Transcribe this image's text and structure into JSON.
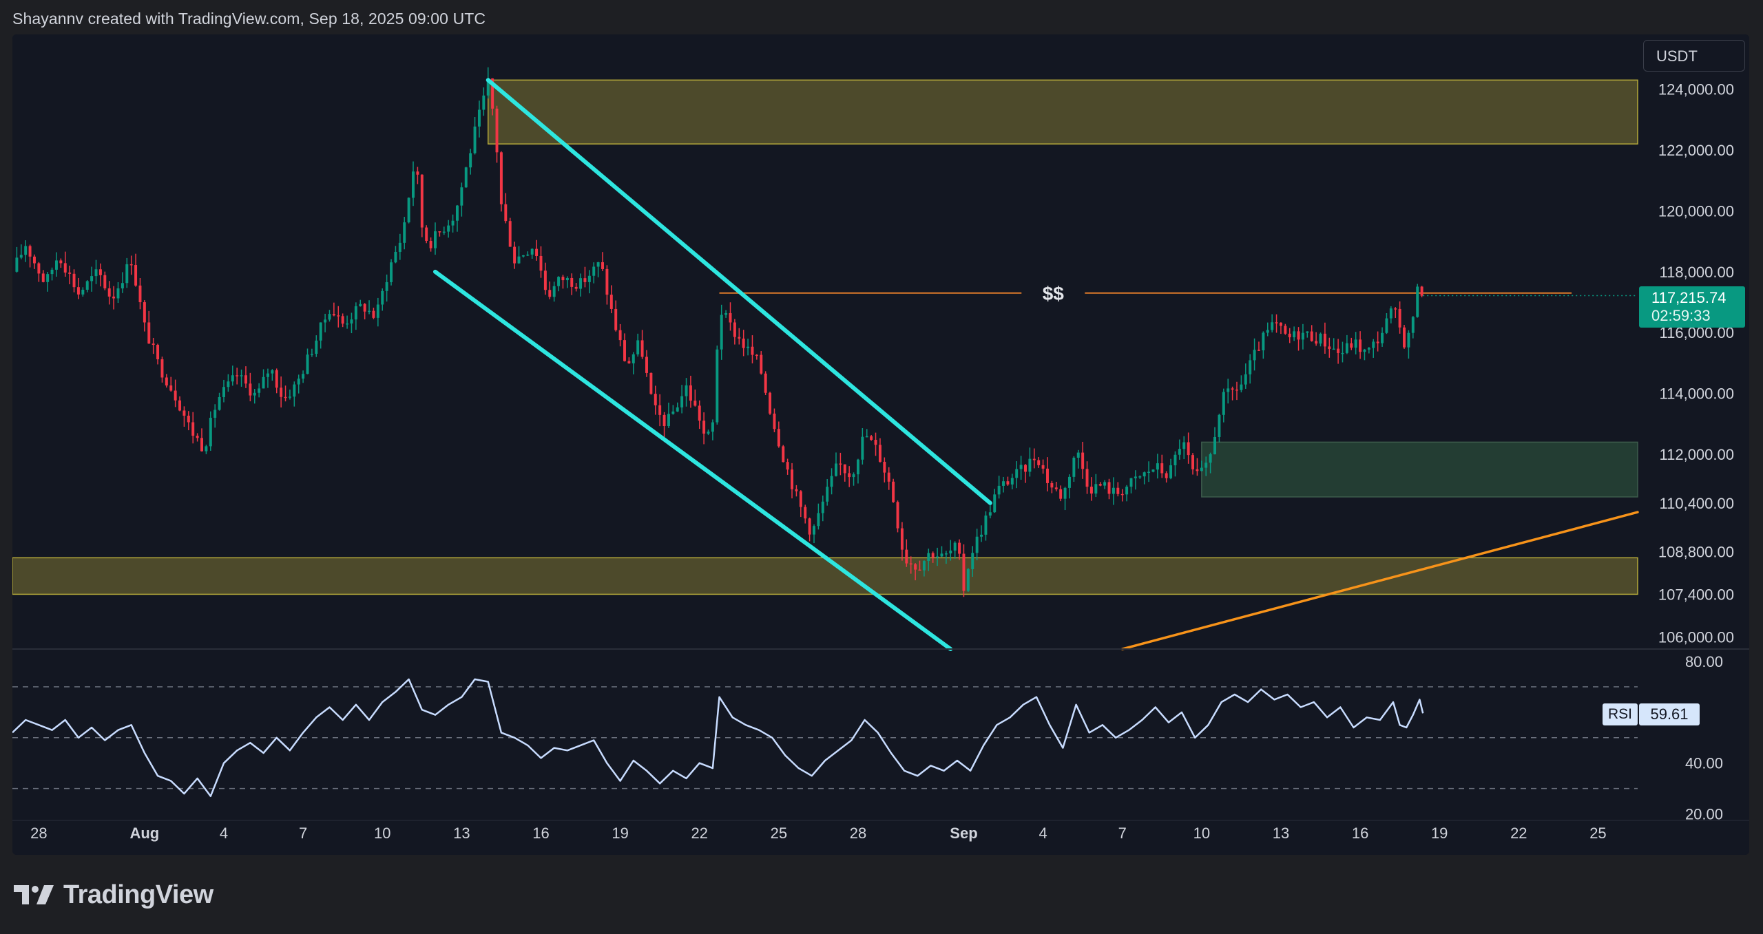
{
  "header": {
    "attribution": "Shayannv created with TradingView.com, Sep 18, 2025 09:00 UTC"
  },
  "brand": {
    "name": "TradingView"
  },
  "badge": {
    "currency": "USDT"
  },
  "price_tag": {
    "price": "117,215.74",
    "countdown": "02:59:33"
  },
  "rsi_panel": {
    "label": "RSI",
    "value": "59.61"
  },
  "colors": {
    "background": "#131722",
    "up_candle": "#089981",
    "down_candle": "#f23645",
    "channel": "#2ee6e0",
    "trendline": "#f7931a",
    "level_line": "#e07b2a",
    "supply_zone": "#4d4a2b",
    "demand_zone": "#233d33",
    "rsi_line": "#c8dcff",
    "text": "#d1d4dc"
  },
  "chart_data": {
    "type": "candlestick",
    "price_axis": {
      "ticks": [
        124000,
        122000,
        120000,
        118000,
        116000,
        114000,
        112000,
        110400,
        108800,
        107400,
        106000
      ],
      "tick_labels": [
        "124,000.00",
        "122,000.00",
        "120,000.00",
        "118,000.00",
        "116,000.00",
        "114,000.00",
        "112,000.00",
        "110,400.00",
        "108,800.00",
        "107,400.00",
        "106,000.00"
      ],
      "range": [
        105600,
        125800
      ]
    },
    "time_axis": {
      "labels": [
        "28",
        "Aug",
        "4",
        "7",
        "10",
        "13",
        "16",
        "19",
        "22",
        "25",
        "28",
        "Sep",
        "4",
        "7",
        "10",
        "13",
        "16",
        "19",
        "22",
        "25"
      ],
      "label_dates": [
        "2025-07-28",
        "2025-08-01",
        "2025-08-04",
        "2025-08-07",
        "2025-08-10",
        "2025-08-13",
        "2025-08-16",
        "2025-08-19",
        "2025-08-22",
        "2025-08-25",
        "2025-08-28",
        "2025-09-01",
        "2025-09-04",
        "2025-09-07",
        "2025-09-10",
        "2025-09-13",
        "2025-09-16",
        "2025-09-19",
        "2025-09-22",
        "2025-09-25"
      ],
      "range": [
        "2025-07-27T00:00",
        "2025-09-26T12:00"
      ]
    },
    "price_path": [
      [
        "2025-07-27T00:00",
        118000
      ],
      [
        "2025-07-27T12:00",
        118900
      ],
      [
        "2025-07-28T06:00",
        117600
      ],
      [
        "2025-07-28T18:00",
        118600
      ],
      [
        "2025-07-29T12:00",
        117300
      ],
      [
        "2025-07-30T06:00",
        118000
      ],
      [
        "2025-07-30T18:00",
        117100
      ],
      [
        "2025-07-31T12:00",
        118400
      ],
      [
        "2025-08-01T00:00",
        116200
      ],
      [
        "2025-08-01T12:00",
        115000
      ],
      [
        "2025-08-02T06:00",
        113800
      ],
      [
        "2025-08-02T18:00",
        112800
      ],
      [
        "2025-08-03T06:00",
        112200
      ],
      [
        "2025-08-03T18:00",
        113800
      ],
      [
        "2025-08-04T12:00",
        114600
      ],
      [
        "2025-08-05T06:00",
        113900
      ],
      [
        "2025-08-05T18:00",
        114900
      ],
      [
        "2025-08-06T06:00",
        113800
      ],
      [
        "2025-08-06T18:00",
        114300
      ],
      [
        "2025-08-07T12:00",
        115800
      ],
      [
        "2025-08-08T00:00",
        116800
      ],
      [
        "2025-08-08T12:00",
        116300
      ],
      [
        "2025-08-09T06:00",
        116900
      ],
      [
        "2025-08-09T18:00",
        116500
      ],
      [
        "2025-08-10T06:00",
        118100
      ],
      [
        "2025-08-10T18:00",
        119200
      ],
      [
        "2025-08-11T06:00",
        121800
      ],
      [
        "2025-08-11T12:00",
        119500
      ],
      [
        "2025-08-11T18:00",
        118900
      ],
      [
        "2025-08-12T06:00",
        119400
      ],
      [
        "2025-08-12T18:00",
        119900
      ],
      [
        "2025-08-13T12:00",
        122600
      ],
      [
        "2025-08-14T00:00",
        124200
      ],
      [
        "2025-08-14T06:00",
        122900
      ],
      [
        "2025-08-14T12:00",
        120200
      ],
      [
        "2025-08-15T00:00",
        118400
      ],
      [
        "2025-08-15T18:00",
        118900
      ],
      [
        "2025-08-16T06:00",
        117200
      ],
      [
        "2025-08-16T18:00",
        117800
      ],
      [
        "2025-08-17T12:00",
        117600
      ],
      [
        "2025-08-18T06:00",
        118300
      ],
      [
        "2025-08-18T18:00",
        116400
      ],
      [
        "2025-08-19T06:00",
        114900
      ],
      [
        "2025-08-19T18:00",
        115700
      ],
      [
        "2025-08-20T06:00",
        113500
      ],
      [
        "2025-08-20T18:00",
        113000
      ],
      [
        "2025-08-21T12:00",
        114200
      ],
      [
        "2025-08-22T00:00",
        113200
      ],
      [
        "2025-08-22T06:00",
        112400
      ],
      [
        "2025-08-22T12:00",
        113000
      ],
      [
        "2025-08-22T18:00",
        116800
      ],
      [
        "2025-08-23T06:00",
        116100
      ],
      [
        "2025-08-23T18:00",
        115500
      ],
      [
        "2025-08-24T06:00",
        115000
      ],
      [
        "2025-08-24T18:00",
        113200
      ],
      [
        "2025-08-25T06:00",
        111700
      ],
      [
        "2025-08-25T18:00",
        110400
      ],
      [
        "2025-08-26T06:00",
        109400
      ],
      [
        "2025-08-26T18:00",
        110600
      ],
      [
        "2025-08-27T06:00",
        111700
      ],
      [
        "2025-08-27T18:00",
        111300
      ],
      [
        "2025-08-28T06:00",
        112700
      ],
      [
        "2025-08-28T18:00",
        112100
      ],
      [
        "2025-08-29T06:00",
        110900
      ],
      [
        "2025-08-29T18:00",
        108600
      ],
      [
        "2025-08-30T06:00",
        108300
      ],
      [
        "2025-08-30T18:00",
        108800
      ],
      [
        "2025-08-31T06:00",
        108600
      ],
      [
        "2025-08-31T18:00",
        109000
      ],
      [
        "2025-09-01T00:00",
        107600
      ],
      [
        "2025-09-01T06:00",
        108700
      ],
      [
        "2025-09-01T18:00",
        109700
      ],
      [
        "2025-09-02T06:00",
        110800
      ],
      [
        "2025-09-02T18:00",
        111200
      ],
      [
        "2025-09-03T06:00",
        111500
      ],
      [
        "2025-09-03T18:00",
        112000
      ],
      [
        "2025-09-04T06:00",
        111000
      ],
      [
        "2025-09-04T18:00",
        110600
      ],
      [
        "2025-09-05T06:00",
        112200
      ],
      [
        "2025-09-05T18:00",
        110900
      ],
      [
        "2025-09-06T06:00",
        111000
      ],
      [
        "2025-09-06T18:00",
        110700
      ],
      [
        "2025-09-07T06:00",
        111000
      ],
      [
        "2025-09-07T18:00",
        111300
      ],
      [
        "2025-09-08T06:00",
        111600
      ],
      [
        "2025-09-08T18:00",
        111300
      ],
      [
        "2025-09-09T06:00",
        112500
      ],
      [
        "2025-09-09T18:00",
        111200
      ],
      [
        "2025-09-10T06:00",
        111600
      ],
      [
        "2025-09-10T18:00",
        113800
      ],
      [
        "2025-09-11T12:00",
        114300
      ],
      [
        "2025-09-12T06:00",
        115700
      ],
      [
        "2025-09-12T18:00",
        116300
      ],
      [
        "2025-09-13T06:00",
        115800
      ],
      [
        "2025-09-13T18:00",
        116000
      ],
      [
        "2025-09-14T12:00",
        115800
      ],
      [
        "2025-09-15T06:00",
        115300
      ],
      [
        "2025-09-15T18:00",
        115700
      ],
      [
        "2025-09-16T06:00",
        115300
      ],
      [
        "2025-09-16T18:00",
        115900
      ],
      [
        "2025-09-17T06:00",
        116800
      ],
      [
        "2025-09-17T18:00",
        115500
      ],
      [
        "2025-09-18T00:00",
        116600
      ],
      [
        "2025-09-18T06:00",
        117700
      ],
      [
        "2025-09-18T09:00",
        117215
      ]
    ],
    "overlays": {
      "supply_zone": {
        "from": "2025-08-14T00:00",
        "to": "2025-09-26T12:00",
        "price_low": 122200,
        "price_high": 124300
      },
      "demand_zone": {
        "from": "2025-09-10T00:00",
        "to": "2025-09-26T12:00",
        "price_low": 110600,
        "price_high": 112400
      },
      "support_zone": {
        "from": "2025-07-27T00:00",
        "to": "2025-09-26T12:00",
        "price_low": 107400,
        "price_high": 108600
      },
      "liquidity_level": {
        "from": "2025-08-22T18:00",
        "to": "2025-09-24T00:00",
        "price": 117300,
        "label": "$$"
      },
      "channel_upper": [
        [
          "2025-08-14T00:00",
          124300
        ],
        [
          "2025-09-02T00:00",
          110400
        ]
      ],
      "channel_lower": [
        [
          "2025-08-12T00:00",
          118000
        ],
        [
          "2025-08-31T12:00",
          105600
        ]
      ],
      "rising_trendline": [
        [
          "2025-09-07T00:00",
          105600
        ],
        [
          "2025-09-26T12:00",
          110100
        ]
      ]
    },
    "rsi": {
      "axis_ticks": [
        80,
        60,
        40,
        20
      ],
      "axis_labels": [
        "80.00",
        "40.00",
        "20.00"
      ],
      "range": [
        18,
        80
      ],
      "levels": [
        70,
        50,
        30
      ],
      "last": 59.61,
      "values": [
        [
          "2025-07-27T00:00",
          52
        ],
        [
          "2025-07-27T12:00",
          57
        ],
        [
          "2025-07-28T00:00",
          55
        ],
        [
          "2025-07-28T12:00",
          53
        ],
        [
          "2025-07-29T00:00",
          57
        ],
        [
          "2025-07-29T12:00",
          50
        ],
        [
          "2025-07-30T00:00",
          54
        ],
        [
          "2025-07-30T12:00",
          49
        ],
        [
          "2025-07-31T00:00",
          53
        ],
        [
          "2025-07-31T12:00",
          55
        ],
        [
          "2025-08-01T00:00",
          44
        ],
        [
          "2025-08-01T12:00",
          35
        ],
        [
          "2025-08-02T00:00",
          33
        ],
        [
          "2025-08-02T12:00",
          28
        ],
        [
          "2025-08-03T00:00",
          34
        ],
        [
          "2025-08-03T12:00",
          27
        ],
        [
          "2025-08-04T00:00",
          40
        ],
        [
          "2025-08-04T12:00",
          45
        ],
        [
          "2025-08-05T00:00",
          48
        ],
        [
          "2025-08-05T12:00",
          44
        ],
        [
          "2025-08-06T00:00",
          50
        ],
        [
          "2025-08-06T12:00",
          45
        ],
        [
          "2025-08-07T00:00",
          52
        ],
        [
          "2025-08-07T12:00",
          58
        ],
        [
          "2025-08-08T00:00",
          62
        ],
        [
          "2025-08-08T12:00",
          57
        ],
        [
          "2025-08-09T00:00",
          63
        ],
        [
          "2025-08-09T12:00",
          57
        ],
        [
          "2025-08-10T00:00",
          64
        ],
        [
          "2025-08-10T12:00",
          68
        ],
        [
          "2025-08-11T00:00",
          73
        ],
        [
          "2025-08-11T12:00",
          61
        ],
        [
          "2025-08-12T00:00",
          59
        ],
        [
          "2025-08-12T12:00",
          63
        ],
        [
          "2025-08-13T00:00",
          66
        ],
        [
          "2025-08-13T12:00",
          73
        ],
        [
          "2025-08-14T00:00",
          72
        ],
        [
          "2025-08-14T12:00",
          52
        ],
        [
          "2025-08-15T00:00",
          50
        ],
        [
          "2025-08-15T12:00",
          47
        ],
        [
          "2025-08-16T00:00",
          42
        ],
        [
          "2025-08-16T12:00",
          46
        ],
        [
          "2025-08-17T00:00",
          45
        ],
        [
          "2025-08-17T12:00",
          47
        ],
        [
          "2025-08-18T00:00",
          49
        ],
        [
          "2025-08-18T12:00",
          40
        ],
        [
          "2025-08-19T00:00",
          33
        ],
        [
          "2025-08-19T12:00",
          41
        ],
        [
          "2025-08-20T00:00",
          37
        ],
        [
          "2025-08-20T12:00",
          32
        ],
        [
          "2025-08-21T00:00",
          37
        ],
        [
          "2025-08-21T12:00",
          34
        ],
        [
          "2025-08-22T00:00",
          40
        ],
        [
          "2025-08-22T12:00",
          38
        ],
        [
          "2025-08-22T18:00",
          66
        ],
        [
          "2025-08-23T06:00",
          58
        ],
        [
          "2025-08-23T18:00",
          55
        ],
        [
          "2025-08-24T06:00",
          53
        ],
        [
          "2025-08-24T18:00",
          50
        ],
        [
          "2025-08-25T06:00",
          43
        ],
        [
          "2025-08-25T18:00",
          38
        ],
        [
          "2025-08-26T06:00",
          35
        ],
        [
          "2025-08-26T18:00",
          41
        ],
        [
          "2025-08-27T06:00",
          45
        ],
        [
          "2025-08-27T18:00",
          49
        ],
        [
          "2025-08-28T06:00",
          57
        ],
        [
          "2025-08-28T18:00",
          52
        ],
        [
          "2025-08-29T06:00",
          44
        ],
        [
          "2025-08-29T18:00",
          37
        ],
        [
          "2025-08-30T06:00",
          35
        ],
        [
          "2025-08-30T18:00",
          39
        ],
        [
          "2025-08-31T06:00",
          37
        ],
        [
          "2025-08-31T18:00",
          41
        ],
        [
          "2025-09-01T06:00",
          37
        ],
        [
          "2025-09-01T18:00",
          47
        ],
        [
          "2025-09-02T06:00",
          55
        ],
        [
          "2025-09-02T18:00",
          58
        ],
        [
          "2025-09-03T06:00",
          63
        ],
        [
          "2025-09-03T18:00",
          66
        ],
        [
          "2025-09-04T06:00",
          55
        ],
        [
          "2025-09-04T18:00",
          46
        ],
        [
          "2025-09-05T06:00",
          63
        ],
        [
          "2025-09-05T18:00",
          52
        ],
        [
          "2025-09-06T06:00",
          55
        ],
        [
          "2025-09-06T18:00",
          50
        ],
        [
          "2025-09-07T06:00",
          53
        ],
        [
          "2025-09-07T18:00",
          57
        ],
        [
          "2025-09-08T06:00",
          62
        ],
        [
          "2025-09-08T18:00",
          56
        ],
        [
          "2025-09-09T06:00",
          60
        ],
        [
          "2025-09-09T18:00",
          50
        ],
        [
          "2025-09-10T06:00",
          55
        ],
        [
          "2025-09-10T18:00",
          64
        ],
        [
          "2025-09-11T06:00",
          67
        ],
        [
          "2025-09-11T18:00",
          64
        ],
        [
          "2025-09-12T06:00",
          69
        ],
        [
          "2025-09-12T18:00",
          65
        ],
        [
          "2025-09-13T06:00",
          67
        ],
        [
          "2025-09-13T18:00",
          62
        ],
        [
          "2025-09-14T06:00",
          64
        ],
        [
          "2025-09-14T18:00",
          58
        ],
        [
          "2025-09-15T06:00",
          62
        ],
        [
          "2025-09-15T18:00",
          54
        ],
        [
          "2025-09-16T06:00",
          58
        ],
        [
          "2025-09-16T18:00",
          57
        ],
        [
          "2025-09-17T06:00",
          64
        ],
        [
          "2025-09-17T12:00",
          55
        ],
        [
          "2025-09-17T18:00",
          54
        ],
        [
          "2025-09-18T00:00",
          59
        ],
        [
          "2025-09-18T06:00",
          65
        ],
        [
          "2025-09-18T09:00",
          59.61
        ]
      ]
    }
  }
}
